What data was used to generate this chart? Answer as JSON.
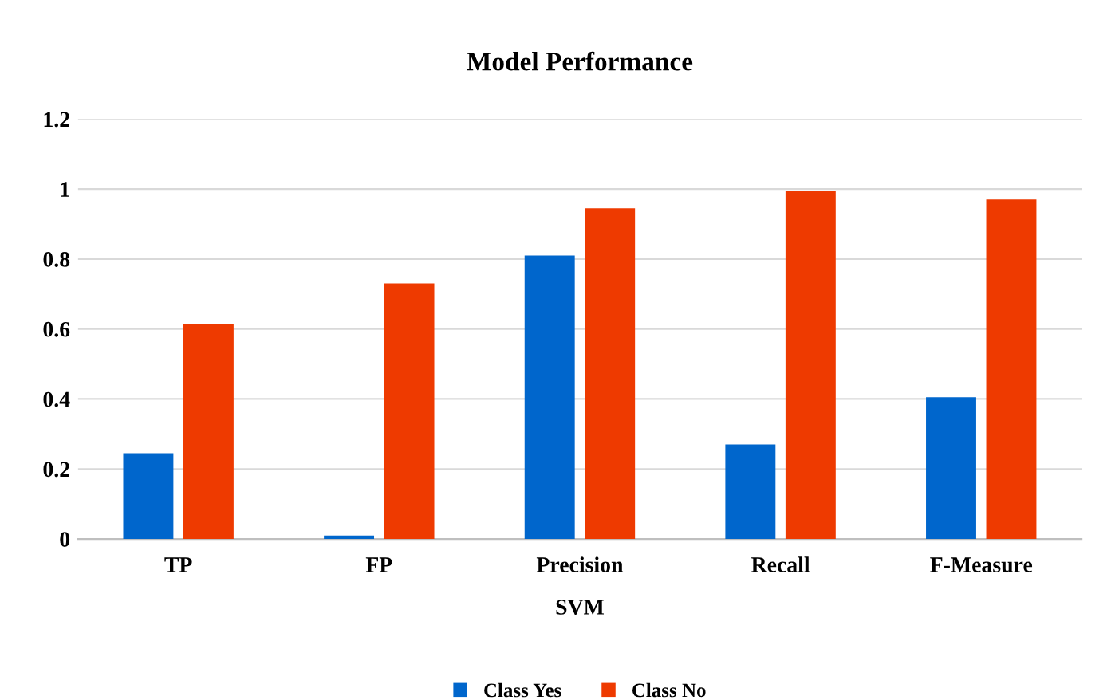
{
  "chart_data": {
    "type": "bar",
    "title": "Model Performance",
    "xlabel": "SVM",
    "categories": [
      "TP",
      "FP",
      "Precision",
      "Recall",
      "F-Measure"
    ],
    "series": [
      {
        "name": "Class Yes",
        "color": "#0066cc",
        "values": [
          0.245,
          0.01,
          0.81,
          0.27,
          0.405
        ]
      },
      {
        "name": "Class No",
        "color": "#ee3a00",
        "values": [
          0.614,
          0.73,
          0.945,
          0.995,
          0.97
        ]
      }
    ],
    "ylim": [
      0,
      1.2
    ],
    "yticks": [
      0,
      0.2,
      0.4,
      0.6,
      0.8,
      1,
      1.2
    ],
    "grid": "y",
    "legend": "bottom"
  }
}
